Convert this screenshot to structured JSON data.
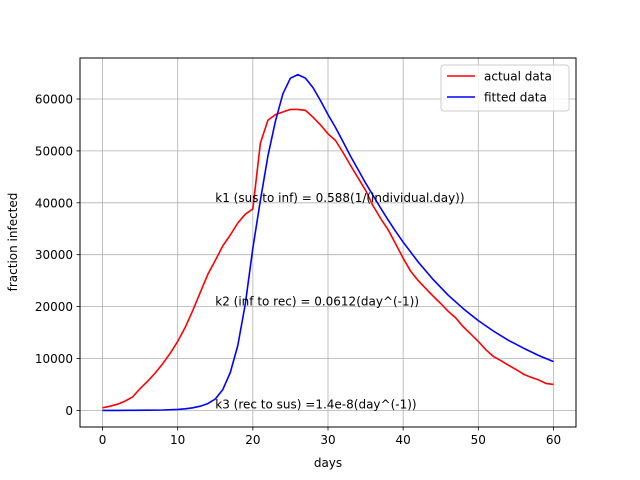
{
  "chart_data": {
    "type": "line",
    "title": "",
    "xlabel": "days",
    "ylabel": "fraction infected",
    "xlim": [
      -3,
      63
    ],
    "ylim": [
      -3200,
      67900
    ],
    "xticks": [
      0,
      10,
      20,
      30,
      40,
      50,
      60
    ],
    "yticks": [
      0,
      10000,
      20000,
      30000,
      40000,
      50000,
      60000
    ],
    "grid": true,
    "legend": "top-right",
    "series": [
      {
        "name": "actual data",
        "color": "#ff0000",
        "x": [
          0,
          1,
          2,
          3,
          4,
          5,
          6,
          7,
          8,
          9,
          10,
          11,
          12,
          13,
          14,
          15,
          16,
          17,
          18,
          19,
          20,
          21,
          22,
          23,
          24,
          25,
          26,
          27,
          28,
          29,
          30,
          31,
          32,
          33,
          34,
          35,
          36,
          37,
          38,
          39,
          40,
          41,
          42,
          43,
          44,
          45,
          46,
          47,
          48,
          49,
          50,
          51,
          52,
          53,
          54,
          55,
          56,
          57,
          58,
          59,
          60
        ],
        "y": [
          500,
          800,
          1200,
          1800,
          2600,
          4200,
          5600,
          7200,
          9000,
          11000,
          13300,
          16000,
          19200,
          22700,
          26200,
          28900,
          31700,
          33800,
          36100,
          37800,
          38800,
          51500,
          55900,
          57000,
          57500,
          58000,
          58000,
          57800,
          56500,
          55000,
          53300,
          52000,
          49700,
          47200,
          44800,
          42400,
          39400,
          37000,
          34800,
          32100,
          29300,
          26800,
          25000,
          23500,
          22000,
          20600,
          19100,
          17800,
          16100,
          14700,
          13300,
          11700,
          10400,
          9600,
          8700,
          7900,
          7000,
          6400,
          5900,
          5200,
          5000
        ]
      },
      {
        "name": "fitted data",
        "color": "#0000ff",
        "x": [
          0,
          2,
          4,
          6,
          8,
          10,
          11,
          12,
          13,
          14,
          15,
          16,
          17,
          18,
          19,
          20,
          21,
          22,
          23,
          24,
          25,
          26,
          27,
          28,
          29,
          30,
          31,
          32,
          33,
          34,
          35,
          36,
          37,
          38,
          39,
          40,
          42,
          44,
          46,
          48,
          50,
          52,
          54,
          56,
          58,
          60
        ],
        "y": [
          0,
          0,
          10,
          30,
          80,
          200,
          300,
          500,
          800,
          1300,
          2200,
          4000,
          7300,
          12500,
          20500,
          31200,
          40500,
          49000,
          55700,
          61000,
          64000,
          64700,
          64000,
          62200,
          59700,
          57000,
          54500,
          51800,
          49000,
          46400,
          43800,
          41400,
          39000,
          36700,
          34500,
          32400,
          28600,
          25200,
          22200,
          19600,
          17300,
          15300,
          13500,
          12000,
          10600,
          9400
        ]
      }
    ],
    "annotations": [
      {
        "text": "k1 (sus to inf) = 0.588(1/(individual.day))",
        "x": 15,
        "y": 40200
      },
      {
        "text": "k2 (inf to rec) = 0.0612(day^(-1))",
        "x": 15,
        "y": 20200
      },
      {
        "text": "k3 (rec to sus) =1.4e-8(day^(-1))",
        "x": 15,
        "y": 400
      }
    ]
  }
}
